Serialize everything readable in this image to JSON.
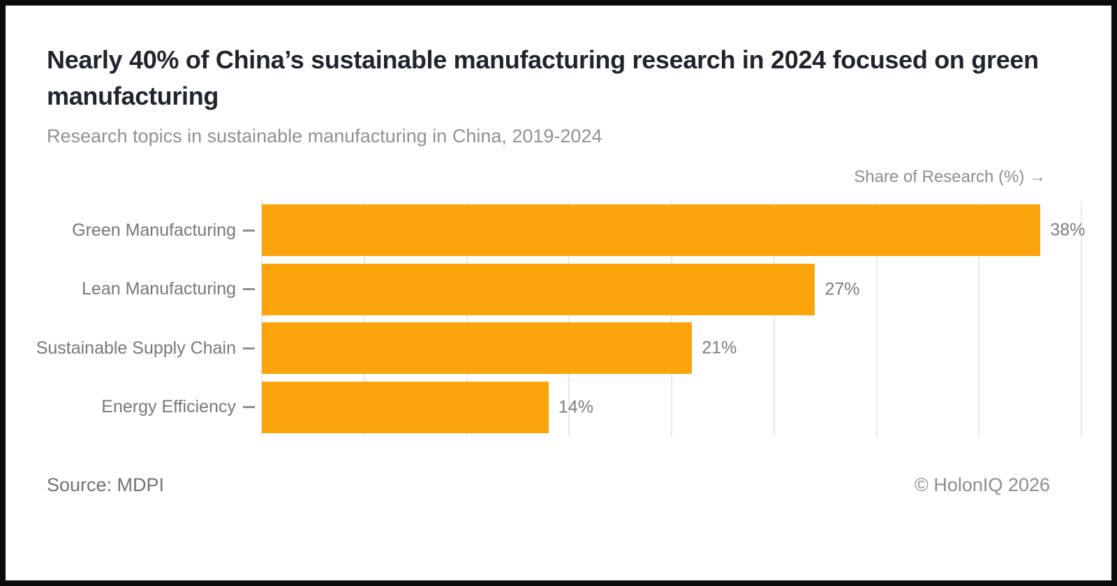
{
  "header": {
    "title": "Nearly 40% of China’s sustainable manufacturing research in 2024 focused on green manufacturing",
    "subtitle": "Research topics in sustainable manufacturing in China, 2019-2024"
  },
  "chart_data": {
    "type": "bar",
    "orientation": "horizontal",
    "title": "Nearly 40% of China’s sustainable manufacturing research in 2024 focused on green manufacturing",
    "subtitle": "Research topics in sustainable manufacturing in China, 2019-2024",
    "categories": [
      "Green Manufacturing",
      "Lean Manufacturing",
      "Sustainable Supply Chain",
      "Energy Efficiency"
    ],
    "values": [
      38,
      27,
      21,
      14
    ],
    "value_labels": [
      "38%",
      "27%",
      "21%",
      "14%"
    ],
    "xlabel": "Share of Research (%) →",
    "ylabel": "",
    "xlim": [
      0,
      40
    ],
    "gridline_step": 5,
    "grid": true,
    "bar_color": "#FCA40B",
    "gridline_color": "#e9e9e9",
    "legend": false
  },
  "footer": {
    "source": "Source: MDPI",
    "copyright": "© HolonIQ 2026"
  }
}
